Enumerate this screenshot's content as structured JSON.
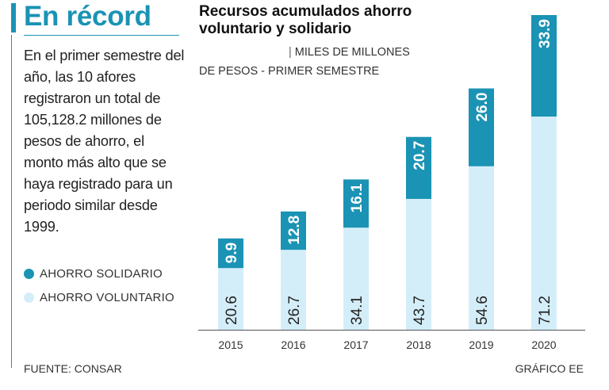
{
  "headline": "En récord",
  "summary": "En el primer semestre del año, las 10 afores registraron un total de 105,128.2 millones de pesos de ahorro, el monto más alto que se haya registrado para un periodo similar desde 1999.",
  "legend": {
    "items": [
      {
        "label": "AHORRO SOLIDARIO",
        "color": "#1a93b4"
      },
      {
        "label": "AHORRO VOLUNTARIO",
        "color": "#d4eef9"
      }
    ]
  },
  "source": "FUENTE: CONSAR",
  "credit": "GRÁFICO EE",
  "colors": {
    "accent": "#1a93b4",
    "light": "#d4eef9"
  },
  "chart_data": {
    "type": "bar",
    "stacked": true,
    "title": "Recursos acumulados ahorro voluntario y solidario",
    "subtitle": "MILES DE MILLONES DE PESOS - PRIMER SEMESTRE",
    "categories": [
      "2015",
      "2016",
      "2017",
      "2018",
      "2019",
      "2020"
    ],
    "series": [
      {
        "name": "AHORRO VOLUNTARIO",
        "values": [
          20.6,
          26.7,
          34.1,
          43.7,
          54.6,
          71.2
        ],
        "color": "#d4eef9"
      },
      {
        "name": "AHORRO SOLIDARIO",
        "values": [
          9.9,
          12.8,
          16.1,
          20.7,
          26.0,
          33.9
        ],
        "color": "#1a93b4"
      }
    ],
    "xlabel": "",
    "ylabel": "",
    "ylim": [
      0,
      105.1
    ],
    "grid": false,
    "data_labels": "rotated, inside bars",
    "legend_position": "left"
  }
}
